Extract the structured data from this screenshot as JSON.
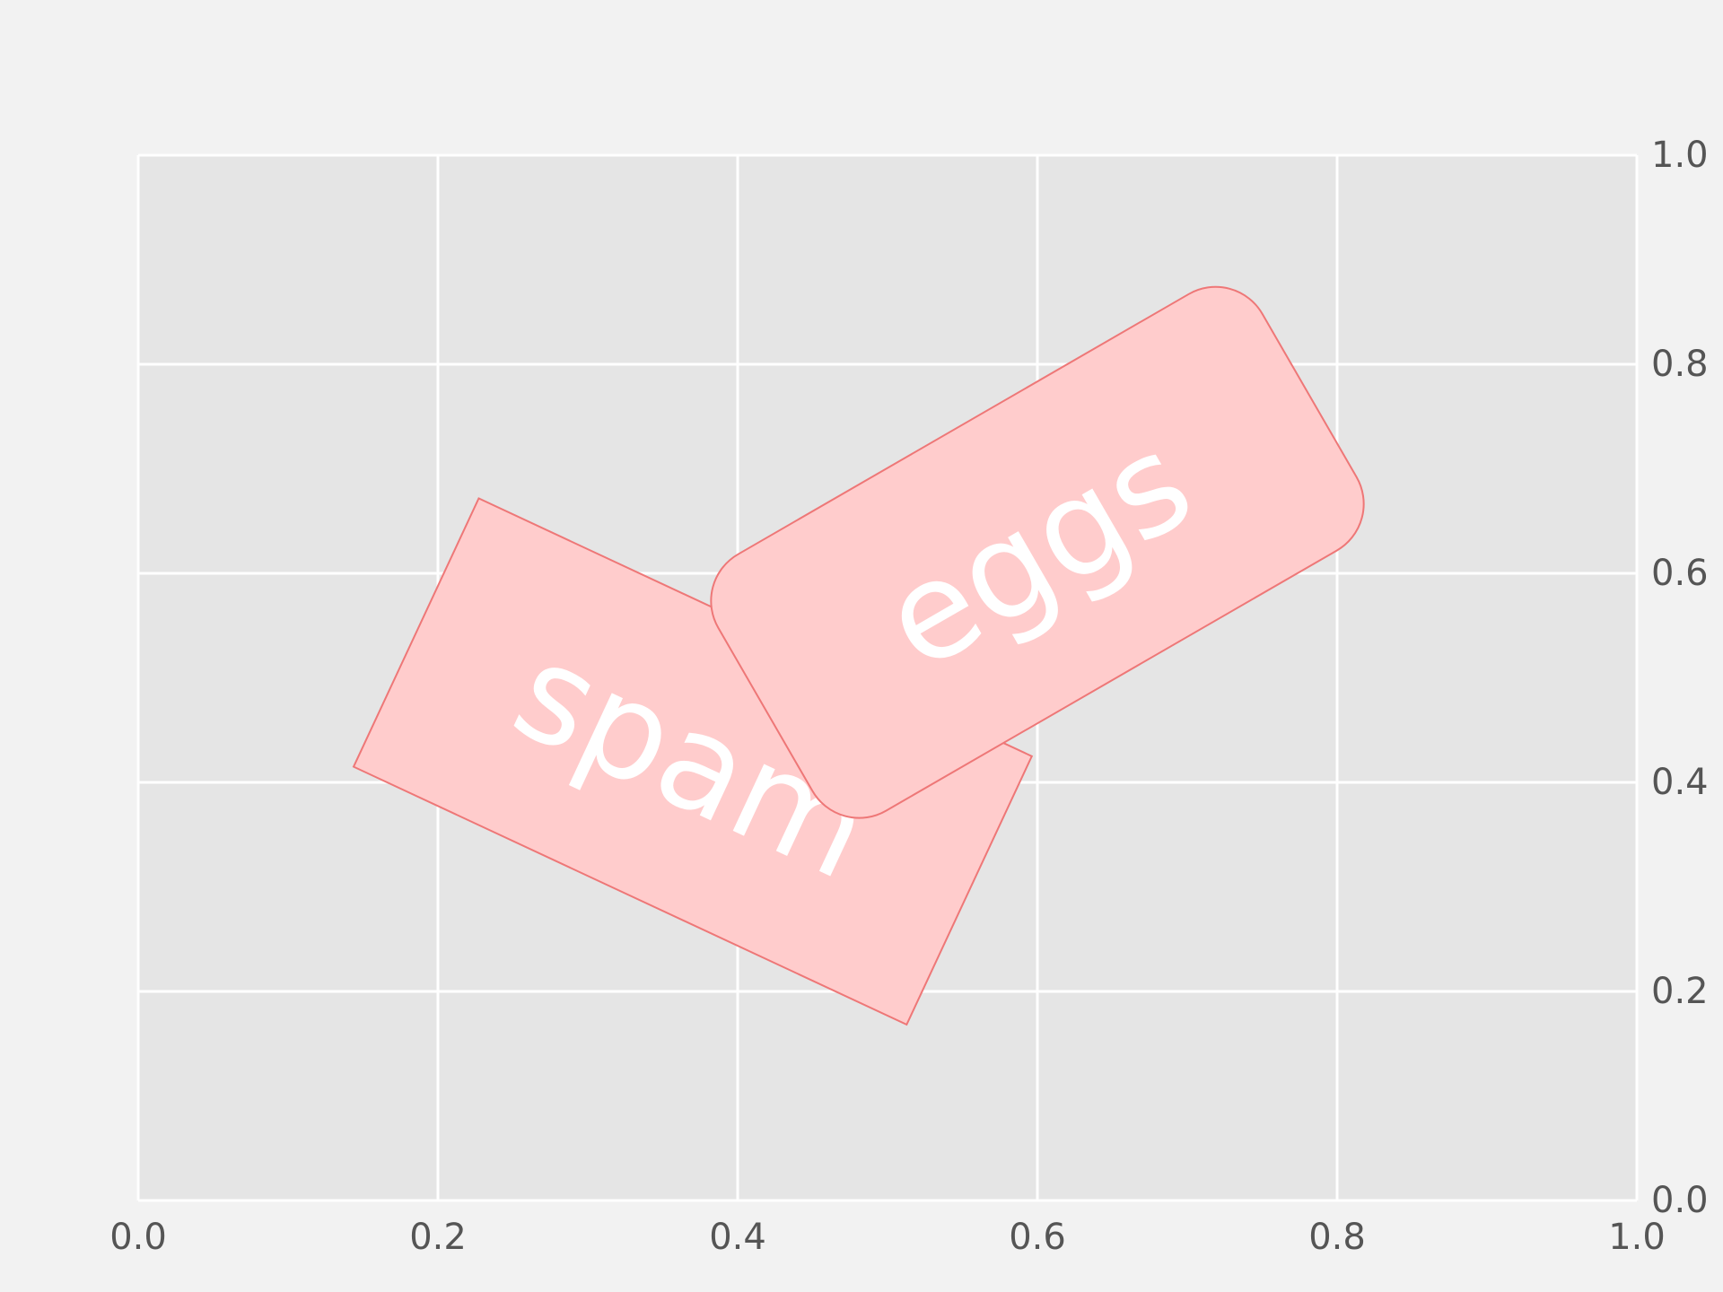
{
  "chart_data": {
    "type": "scatter",
    "title": "",
    "xlabel": "",
    "ylabel": "",
    "xlim": [
      0.0,
      1.0
    ],
    "ylim": [
      0.0,
      1.0
    ],
    "xticks": [
      0.0,
      0.2,
      0.4,
      0.6,
      0.8,
      1.0
    ],
    "yticks": [
      0.0,
      0.2,
      0.4,
      0.6,
      0.8,
      1.0
    ],
    "xtick_labels": [
      "0.0",
      "0.2",
      "0.4",
      "0.6",
      "0.8",
      "1.0"
    ],
    "ytick_labels": [
      "0.0",
      "0.2",
      "0.4",
      "0.6",
      "0.8",
      "1.0"
    ],
    "y_axis_side": "right",
    "grid": true,
    "series": [],
    "annotations": [
      {
        "text": "spam",
        "x": 0.37,
        "y": 0.42,
        "rotation_deg": -25,
        "box": "square"
      },
      {
        "text": "eggs",
        "x": 0.6,
        "y": 0.62,
        "rotation_deg": 30,
        "box": "round"
      }
    ]
  },
  "colors": {
    "figure_bg": "#f2f2f2",
    "axes_bg": "#e5e5e5",
    "grid": "#ffffff",
    "tick_text": "#555555",
    "box_fill": "#ffcccc",
    "box_edge": "#ee7777",
    "box_text": "#ffffff"
  }
}
